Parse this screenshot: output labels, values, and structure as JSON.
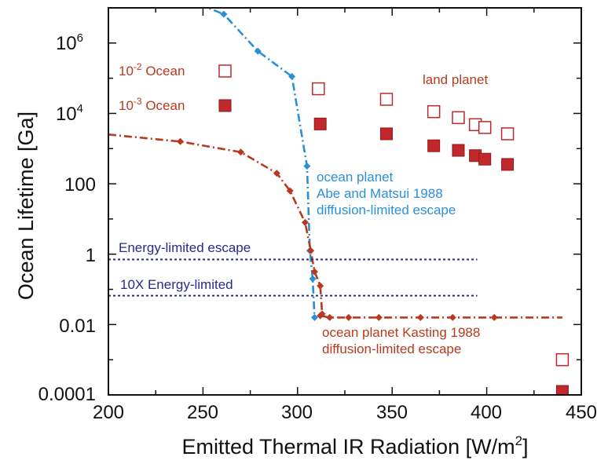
{
  "chart_data": {
    "type": "scatter",
    "xlabel_main": "Emitted Thermal IR Radiation [W/m",
    "xlabel_sup": "2",
    "xlabel_end": "]",
    "ylabel": "Ocean Lifetime [Ga]",
    "xlim": [
      200,
      450
    ],
    "ylim_log10": [
      -4,
      7
    ],
    "y_scale": "log",
    "x_ticks": [
      200,
      250,
      300,
      350,
      400,
      450
    ],
    "y_ticks": [
      {
        "log": 6,
        "base": "10",
        "exp": "6"
      },
      {
        "log": 4,
        "base": "10",
        "exp": "4"
      },
      {
        "log": 2,
        "text": "100"
      },
      {
        "log": 0,
        "text": "1"
      },
      {
        "log": -2,
        "text": "0.01"
      },
      {
        "log": -4,
        "text": "0.0001"
      }
    ],
    "grid": false,
    "colors": {
      "blue": "#2b8fd6",
      "red": "#b83a1e",
      "navy": "#2a2a8a",
      "boxred": "#c0282b"
    },
    "series": [
      {
        "name": "ocean planet Abe and Matsui 1988 diffusion-limited escape",
        "style": "dash-dot-line-diamond",
        "color": "#2b8fd6",
        "points": [
          [
            248,
            7.1
          ],
          [
            261,
            6.82
          ],
          [
            279,
            5.77
          ],
          [
            297,
            5.05
          ],
          [
            305,
            2.5
          ],
          [
            306.5,
            0.1
          ],
          [
            308,
            -0.7
          ],
          [
            309,
            -1.8
          ]
        ]
      },
      {
        "name": "ocean planet Kasting 1988 diffusion-limited escape",
        "style": "dash-dot-line-diamond",
        "color": "#b83a1e",
        "points": [
          [
            200,
            3.4
          ],
          [
            238,
            3.2
          ],
          [
            270,
            2.9
          ],
          [
            289,
            2.3
          ],
          [
            296,
            1.8
          ],
          [
            304,
            0.9
          ],
          [
            307,
            0.1
          ],
          [
            309,
            -0.5
          ],
          [
            312,
            -0.9
          ],
          [
            313,
            -1.7
          ],
          [
            312,
            -1.75
          ],
          [
            317,
            -1.8
          ],
          [
            327,
            -1.8
          ],
          [
            343,
            -1.8
          ],
          [
            365,
            -1.8
          ],
          [
            382,
            -1.8
          ],
          [
            404,
            -1.8
          ],
          [
            440,
            -1.8
          ]
        ]
      },
      {
        "name": "Energy-limited escape",
        "style": "dotted",
        "color": "#2a2a8a",
        "points": [
          [
            200,
            -0.15
          ],
          [
            395,
            -0.15
          ]
        ]
      },
      {
        "name": "10X Energy-limited",
        "style": "dotted",
        "color": "#2a2a8a",
        "points": [
          [
            200,
            -1.18
          ],
          [
            395,
            -1.18
          ]
        ]
      },
      {
        "name": "10^-2 Ocean",
        "style": "open-square",
        "color": "#c0282b",
        "points": [
          [
            311,
            4.7
          ],
          [
            347,
            4.4
          ],
          [
            372,
            4.05
          ],
          [
            385,
            3.88
          ],
          [
            394,
            3.68
          ],
          [
            399,
            3.6
          ],
          [
            411,
            3.42
          ],
          [
            440,
            -3.0
          ]
        ]
      },
      {
        "name": "10^-3 Ocean",
        "style": "filled-square",
        "color": "#c0282b",
        "points": [
          [
            312,
            3.7
          ],
          [
            347,
            3.42
          ],
          [
            372,
            3.08
          ],
          [
            385,
            2.95
          ],
          [
            394,
            2.8
          ],
          [
            399,
            2.7
          ],
          [
            411,
            2.55
          ],
          [
            440,
            -3.9
          ]
        ]
      }
    ],
    "annotations": {
      "legend_2_base": "10",
      "legend_2_exp": "-2",
      "legend_2_word": " Ocean",
      "legend_3_base": "10",
      "legend_3_exp": "-3",
      "legend_3_word": " Ocean",
      "land_planet": "land planet",
      "abe_1": "ocean planet",
      "abe_2": "Abe and Matsui 1988",
      "abe_3": "diffusion-limited escape",
      "kasting_1": "ocean planet Kasting 1988",
      "kasting_2": "diffusion-limited escape",
      "energy": "Energy-limited escape",
      "energy10": "10X Energy-limited"
    }
  }
}
